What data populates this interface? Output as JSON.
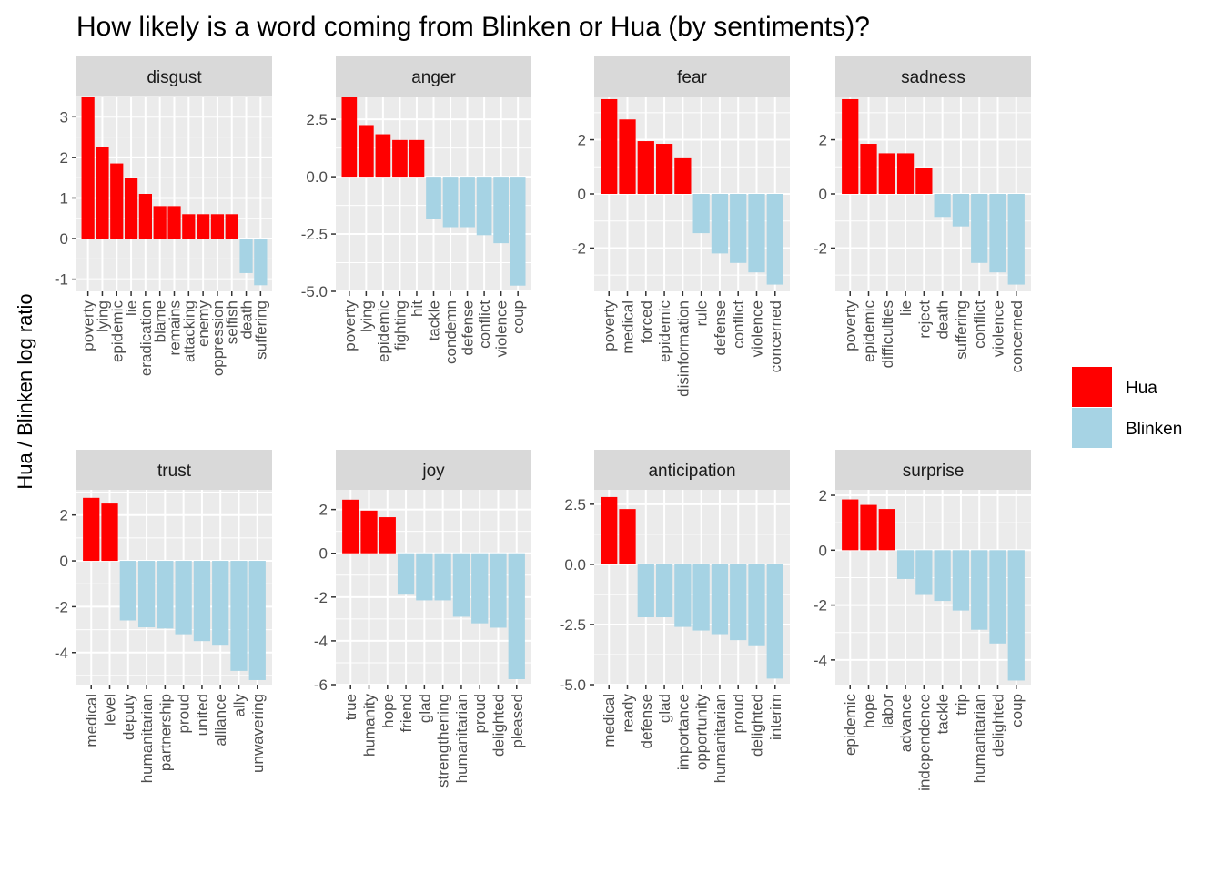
{
  "title": "How likely is a word coming from Blinken or Hua (by sentiments)?",
  "ylabel": "Hua / Blinken log ratio",
  "colors": {
    "hua": "#ff0000",
    "blinken": "#a6d3e4",
    "panel_bg": "#ebebeb",
    "strip_bg": "#d9d9d9",
    "grid": "#ffffff",
    "tick": "#333333"
  },
  "legend": [
    {
      "name": "Hua",
      "color": "#ff0000"
    },
    {
      "name": "Blinken",
      "color": "#a6d3e4"
    }
  ],
  "chart_data": [
    {
      "type": "bar",
      "facet": "disgust",
      "ylim": [
        -1.3,
        3.5
      ],
      "yticks": [
        -1,
        0,
        1,
        2,
        3
      ],
      "ytick_labels": [
        "-1",
        "0",
        "1",
        "2",
        "3"
      ],
      "categories": [
        "poverty",
        "lying",
        "epidemic",
        "lie",
        "eradication",
        "blame",
        "remains",
        "attacking",
        "enemy",
        "oppression",
        "selfish",
        "death",
        "suffering"
      ],
      "values": [
        3.5,
        2.25,
        1.85,
        1.5,
        1.1,
        0.8,
        0.8,
        0.6,
        0.6,
        0.6,
        0.6,
        -0.85,
        -1.15
      ]
    },
    {
      "type": "bar",
      "facet": "anger",
      "ylim": [
        -5.0,
        3.5
      ],
      "yticks": [
        -5.0,
        -2.5,
        0.0,
        2.5
      ],
      "ytick_labels": [
        "-5.0",
        "-2.5",
        "0.0",
        "2.5"
      ],
      "categories": [
        "poverty",
        "lying",
        "epidemic",
        "fighting",
        "hit",
        "tackle",
        "condemn",
        "defense",
        "conflict",
        "violence",
        "coup"
      ],
      "values": [
        3.5,
        2.25,
        1.85,
        1.6,
        1.6,
        -1.85,
        -2.2,
        -2.2,
        -2.55,
        -2.9,
        -4.75
      ]
    },
    {
      "type": "bar",
      "facet": "fear",
      "ylim": [
        -3.6,
        3.6
      ],
      "yticks": [
        -2,
        0,
        2
      ],
      "ytick_labels": [
        "-2",
        "0",
        "2"
      ],
      "categories": [
        "poverty",
        "medical",
        "forced",
        "epidemic",
        "disinformation",
        "rule",
        "defense",
        "conflict",
        "violence",
        "concerned"
      ],
      "values": [
        3.5,
        2.75,
        1.95,
        1.85,
        1.35,
        -1.45,
        -2.2,
        -2.55,
        -2.9,
        -3.35
      ]
    },
    {
      "type": "bar",
      "facet": "sadness",
      "ylim": [
        -3.6,
        3.6
      ],
      "yticks": [
        -2,
        0,
        2
      ],
      "ytick_labels": [
        "-2",
        "0",
        "2"
      ],
      "categories": [
        "poverty",
        "epidemic",
        "difficulties",
        "lie",
        "reject",
        "death",
        "suffering",
        "conflict",
        "violence",
        "concerned"
      ],
      "values": [
        3.5,
        1.85,
        1.5,
        1.5,
        0.95,
        -0.85,
        -1.2,
        -2.55,
        -2.9,
        -3.35
      ]
    },
    {
      "type": "bar",
      "facet": "trust",
      "ylim": [
        -5.4,
        3.1
      ],
      "yticks": [
        -4,
        -2,
        0,
        2
      ],
      "ytick_labels": [
        "-4",
        "-2",
        "0",
        "2"
      ],
      "categories": [
        "medical",
        "level",
        "deputy",
        "humanitarian",
        "partnership",
        "proud",
        "united",
        "alliance",
        "ally",
        "unwavering"
      ],
      "values": [
        2.75,
        2.5,
        -2.6,
        -2.9,
        -2.95,
        -3.2,
        -3.5,
        -3.7,
        -4.8,
        -5.2
      ]
    },
    {
      "type": "bar",
      "facet": "joy",
      "ylim": [
        -6.0,
        2.9
      ],
      "yticks": [
        -6,
        -4,
        -2,
        0,
        2
      ],
      "ytick_labels": [
        "-6",
        "-4",
        "-2",
        "0",
        "2"
      ],
      "categories": [
        "true",
        "humanity",
        "hope",
        "friend",
        "glad",
        "strengthening",
        "humanitarian",
        "proud",
        "delighted",
        "pleased"
      ],
      "values": [
        2.45,
        1.95,
        1.65,
        -1.85,
        -2.15,
        -2.15,
        -2.9,
        -3.2,
        -3.4,
        -5.75
      ]
    },
    {
      "type": "bar",
      "facet": "anticipation",
      "ylim": [
        -5.0,
        3.1
      ],
      "yticks": [
        -5.0,
        -2.5,
        0.0,
        2.5
      ],
      "ytick_labels": [
        "-5.0",
        "-2.5",
        "0.0",
        "2.5"
      ],
      "categories": [
        "medical",
        "ready",
        "defense",
        "glad",
        "importance",
        "opportunity",
        "humanitarian",
        "proud",
        "delighted",
        "interim"
      ],
      "values": [
        2.8,
        2.3,
        -2.2,
        -2.2,
        -2.6,
        -2.75,
        -2.9,
        -3.15,
        -3.4,
        -4.75
      ]
    },
    {
      "type": "bar",
      "facet": "surprise",
      "ylim": [
        -4.9,
        2.2
      ],
      "yticks": [
        -4,
        -2,
        0,
        2
      ],
      "ytick_labels": [
        "-4",
        "-2",
        "0",
        "2"
      ],
      "categories": [
        "epidemic",
        "hope",
        "labor",
        "advance",
        "independence",
        "tackle",
        "trip",
        "humanitarian",
        "delighted",
        "coup"
      ],
      "values": [
        1.85,
        1.65,
        1.5,
        -1.05,
        -1.6,
        -1.85,
        -2.2,
        -2.9,
        -3.4,
        -4.75
      ]
    }
  ]
}
